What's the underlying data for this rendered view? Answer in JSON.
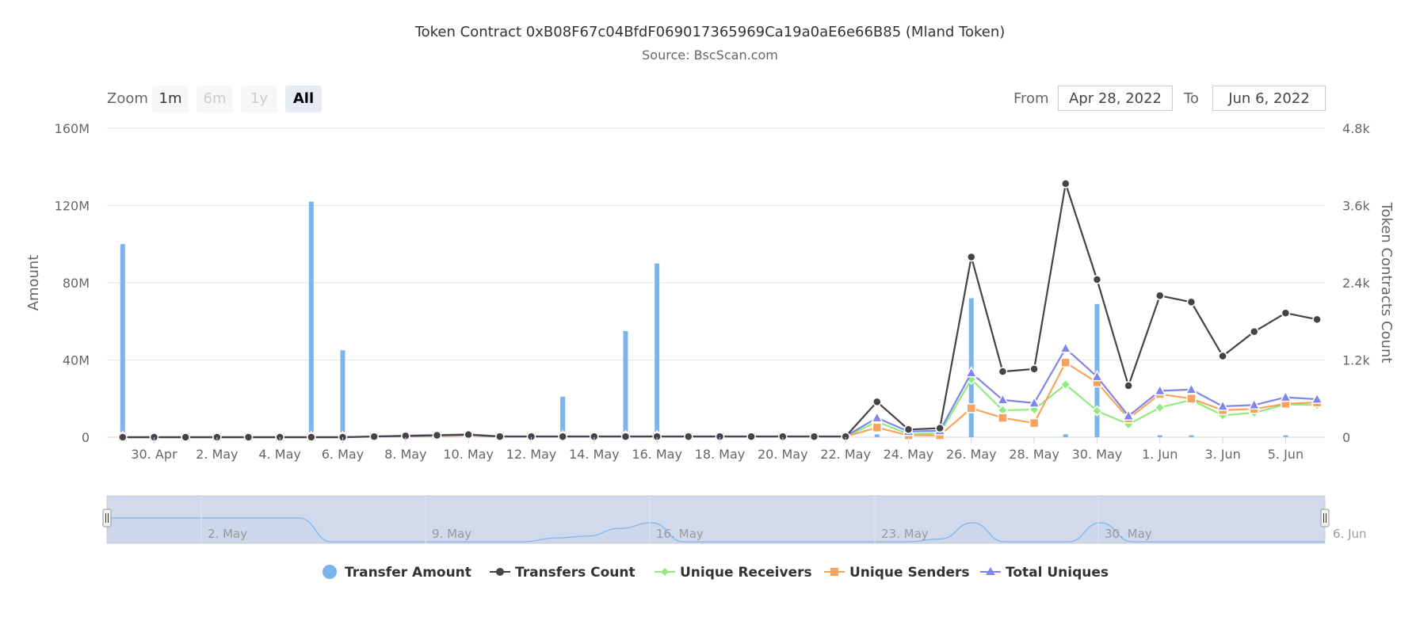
{
  "header": {
    "title": "Token Contract 0xB08F67c04BfdF069017365969Ca19a0aE6e66B85 (Mland Token)",
    "subtitle": "Source: BscScan.com"
  },
  "range_selector": {
    "zoom_label": "Zoom",
    "buttons": [
      {
        "label": "1m",
        "state": "normal"
      },
      {
        "label": "6m",
        "state": "disabled"
      },
      {
        "label": "1y",
        "state": "disabled"
      },
      {
        "label": "All",
        "state": "active"
      }
    ],
    "from_label": "From",
    "from_value": "Apr 28, 2022",
    "to_label": "To",
    "to_value": "Jun 6, 2022"
  },
  "navigator": {
    "labels": [
      "2. May",
      "9. May",
      "16. May",
      "23. May",
      "30. May",
      "6. Jun"
    ]
  },
  "chart_data": {
    "type": "line",
    "title": "Token Contract 0xB08F67c04BfdF069017365969Ca19a0aE6e66B85 (Mland Token)",
    "subtitle": "Source: BscScan.com",
    "ylabel_left": "Amount",
    "ylabel_right": "Token Contracts Count",
    "left_ticks": [
      "0",
      "40M",
      "80M",
      "120M",
      "160M"
    ],
    "right_ticks": [
      "0",
      "1.2k",
      "2.4k",
      "3.6k",
      "4.8k"
    ],
    "ylim_left": [
      0,
      160000000
    ],
    "ylim_right": [
      0,
      4800
    ],
    "x_tick_labels": [
      "30. Apr",
      "2. May",
      "4. May",
      "6. May",
      "8. May",
      "10. May",
      "12. May",
      "14. May",
      "16. May",
      "18. May",
      "20. May",
      "22. May",
      "24. May",
      "26. May",
      "28. May",
      "30. May",
      "1. Jun",
      "3. Jun",
      "5. Jun"
    ],
    "x": [
      "2022-04-29",
      "2022-04-30",
      "2022-05-01",
      "2022-05-02",
      "2022-05-03",
      "2022-05-04",
      "2022-05-05",
      "2022-05-06",
      "2022-05-07",
      "2022-05-08",
      "2022-05-09",
      "2022-05-10",
      "2022-05-11",
      "2022-05-12",
      "2022-05-13",
      "2022-05-14",
      "2022-05-15",
      "2022-05-16",
      "2022-05-17",
      "2022-05-18",
      "2022-05-19",
      "2022-05-20",
      "2022-05-21",
      "2022-05-22",
      "2022-05-23",
      "2022-05-24",
      "2022-05-25",
      "2022-05-26",
      "2022-05-27",
      "2022-05-28",
      "2022-05-29",
      "2022-05-30",
      "2022-05-31",
      "2022-06-01",
      "2022-06-02",
      "2022-06-03",
      "2022-06-04",
      "2022-06-05",
      "2022-06-06"
    ],
    "series": [
      {
        "name": "Transfer Amount",
        "type": "column",
        "axis": "left",
        "color": "#7cb5ec",
        "values": [
          100000000,
          0,
          0,
          0,
          0,
          0,
          122000000,
          45000000,
          0,
          0,
          0,
          0,
          0,
          0,
          21000000,
          0,
          55000000,
          90000000,
          0,
          0,
          0,
          0,
          0,
          0,
          1500000,
          0,
          0,
          72000000,
          0,
          0,
          1500000,
          69000000,
          0,
          1000000,
          1000000,
          0,
          0,
          1000000,
          0
        ]
      },
      {
        "name": "Transfers Count",
        "type": "line",
        "axis": "right",
        "color": "#434348",
        "marker": "circle",
        "values": [
          0,
          0,
          0,
          0,
          0,
          0,
          0,
          0,
          10,
          20,
          30,
          40,
          10,
          10,
          10,
          10,
          10,
          10,
          10,
          10,
          10,
          10,
          10,
          10,
          550,
          120,
          140,
          2800,
          1020,
          1060,
          3940,
          2450,
          800,
          2200,
          2100,
          1260,
          1640,
          1930,
          1830
        ]
      },
      {
        "name": "Unique Receivers",
        "type": "line",
        "axis": "right",
        "color": "#90ed7d",
        "marker": "diamond",
        "values": [
          0,
          0,
          0,
          0,
          0,
          0,
          0,
          0,
          10,
          15,
          20,
          30,
          10,
          10,
          10,
          10,
          10,
          10,
          10,
          10,
          10,
          10,
          10,
          10,
          240,
          50,
          60,
          900,
          420,
          430,
          820,
          410,
          200,
          460,
          580,
          340,
          380,
          510,
          500
        ]
      },
      {
        "name": "Unique Senders",
        "type": "line",
        "axis": "right",
        "color": "#f7a35c",
        "marker": "square",
        "values": [
          0,
          0,
          0,
          0,
          0,
          0,
          0,
          0,
          10,
          15,
          20,
          30,
          10,
          10,
          10,
          10,
          10,
          10,
          10,
          10,
          10,
          10,
          10,
          10,
          150,
          30,
          30,
          450,
          300,
          220,
          1160,
          850,
          290,
          670,
          600,
          420,
          440,
          520,
          540
        ]
      },
      {
        "name": "Total Uniques",
        "type": "line",
        "axis": "right",
        "color": "#8085e9",
        "marker": "triangle",
        "values": [
          0,
          0,
          0,
          0,
          0,
          0,
          0,
          0,
          15,
          25,
          35,
          45,
          15,
          15,
          15,
          15,
          15,
          15,
          15,
          15,
          15,
          15,
          15,
          15,
          300,
          90,
          100,
          1000,
          580,
          530,
          1380,
          940,
          330,
          720,
          740,
          480,
          500,
          620,
          590
        ]
      }
    ],
    "navigator_series_values": [
      25,
      25,
      25,
      25,
      25,
      25,
      25,
      0,
      0,
      0,
      0,
      0,
      0,
      0,
      4,
      6,
      14,
      20,
      0,
      0,
      0,
      0,
      0,
      0,
      0,
      0,
      3,
      20,
      0,
      0,
      0,
      20,
      0,
      0,
      0,
      0,
      0,
      0,
      0
    ],
    "legend_position": "bottom-center",
    "grid": true
  }
}
